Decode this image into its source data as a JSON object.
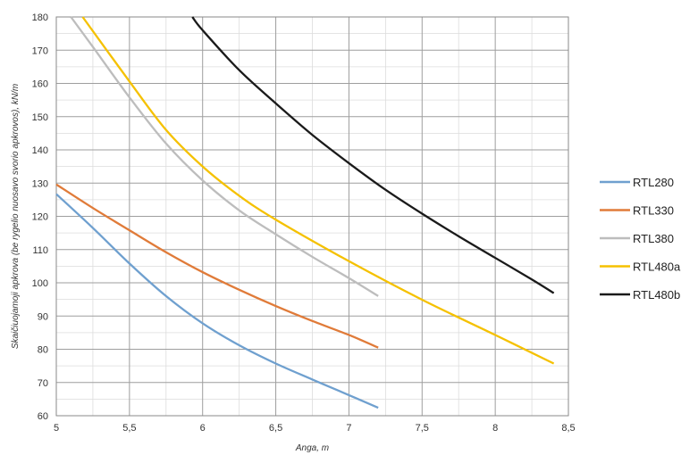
{
  "chart_data": {
    "type": "line",
    "title": "",
    "xlabel": "Anga, m",
    "ylabel": "Skaičiuojamoji apkrova (be rygelio nuosavo svorio apkrovos), kN/m",
    "xlim": [
      5,
      8.5
    ],
    "ylim": [
      60,
      180
    ],
    "x_ticks": [
      5,
      5.5,
      6,
      6.5,
      7,
      7.5,
      8,
      8.5
    ],
    "x_tick_labels": [
      "5",
      "5,5",
      "6",
      "6,5",
      "7",
      "7,5",
      "8",
      "8,5"
    ],
    "y_ticks": [
      60,
      70,
      80,
      90,
      100,
      110,
      120,
      130,
      140,
      150,
      160,
      170,
      180
    ],
    "y_tick_labels": [
      "60",
      "70",
      "80",
      "90",
      "100",
      "110",
      "120",
      "130",
      "140",
      "150",
      "160",
      "170",
      "180"
    ],
    "x_minor_step": 0.25,
    "y_minor_step": 5,
    "grid": true,
    "legend_position": "right",
    "series": [
      {
        "name": "RTL280",
        "color": "#6fa0cf",
        "x": [
          5.0,
          5.25,
          5.5,
          5.75,
          6.0,
          6.25,
          6.5,
          6.75,
          7.0,
          7.2
        ],
        "y": [
          126.7,
          116.5,
          105.8,
          96.0,
          87.8,
          81.2,
          75.7,
          70.9,
          66.2,
          62.4
        ]
      },
      {
        "name": "RTL330",
        "color": "#e07b39",
        "x": [
          5.0,
          5.25,
          5.5,
          5.75,
          6.0,
          6.25,
          6.5,
          6.75,
          7.0,
          7.2
        ],
        "y": [
          129.6,
          122.5,
          115.8,
          109.2,
          103.2,
          97.9,
          93.0,
          88.5,
          84.3,
          80.5
        ]
      },
      {
        "name": "RTL380",
        "color": "#bdbdbd",
        "x": [
          5.1,
          5.25,
          5.5,
          5.75,
          6.0,
          6.25,
          6.5,
          6.75,
          7.0,
          7.2
        ],
        "y": [
          180.0,
          171.0,
          155.8,
          141.9,
          130.8,
          121.8,
          114.6,
          107.8,
          101.4,
          96.0
        ]
      },
      {
        "name": "RTL480a",
        "color": "#f5c100",
        "x": [
          5.18,
          5.5,
          5.75,
          6.0,
          6.25,
          6.5,
          7.0,
          7.5,
          8.0,
          8.4
        ],
        "y": [
          180.0,
          160.6,
          146.0,
          135.0,
          126.2,
          119.0,
          106.5,
          94.9,
          84.3,
          75.7
        ]
      },
      {
        "name": "RTL480b",
        "color": "#1a1a1a",
        "x": [
          5.93,
          6.0,
          6.25,
          6.5,
          6.75,
          7.0,
          7.25,
          7.5,
          7.75,
          8.0,
          8.25,
          8.4
        ],
        "y": [
          180.0,
          176.0,
          164.0,
          154.0,
          144.5,
          136.0,
          128.0,
          120.8,
          114.0,
          107.5,
          101.0,
          96.9
        ]
      }
    ]
  }
}
